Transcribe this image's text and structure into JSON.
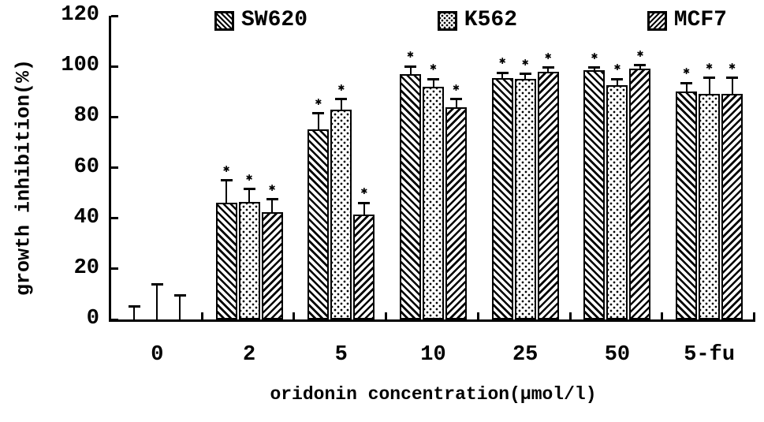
{
  "figure": {
    "background_color": "#ffffff",
    "ink_color": "#000000"
  },
  "chart_data": {
    "type": "bar",
    "title": "",
    "xlabel": "oridonin concentration(μmol/l)",
    "ylabel": "growth inhibition(%)",
    "ylim": [
      0,
      120
    ],
    "yticks": [
      0,
      20,
      40,
      60,
      80,
      100,
      120
    ],
    "grid": false,
    "legend_position": "top",
    "significance_marker": "✱",
    "categories": [
      "0",
      "2",
      "5",
      "10",
      "25",
      "50",
      "5-fu"
    ],
    "series": [
      {
        "name": "SW620",
        "pattern": "diagonal-back",
        "values": [
          0,
          46,
          75,
          97,
          95.5,
          98.5,
          90
        ],
        "errors": [
          5,
          9,
          6.5,
          3,
          2,
          1,
          3.5
        ],
        "significant": [
          false,
          true,
          true,
          true,
          true,
          true,
          true
        ]
      },
      {
        "name": "K562",
        "pattern": "dots",
        "values": [
          0,
          46.5,
          83,
          92,
          95,
          92.5,
          89
        ],
        "errors": [
          14,
          5,
          4,
          3,
          2,
          2.5,
          6.5
        ],
        "significant": [
          false,
          true,
          true,
          true,
          true,
          true,
          true
        ]
      },
      {
        "name": "MCF7",
        "pattern": "diagonal-fwd",
        "values": [
          0,
          42.5,
          41.5,
          84,
          98,
          99,
          89
        ],
        "errors": [
          9.5,
          5,
          4.5,
          3,
          1.5,
          1.5,
          6.5
        ],
        "significant": [
          false,
          true,
          true,
          true,
          true,
          true,
          true
        ]
      }
    ]
  }
}
